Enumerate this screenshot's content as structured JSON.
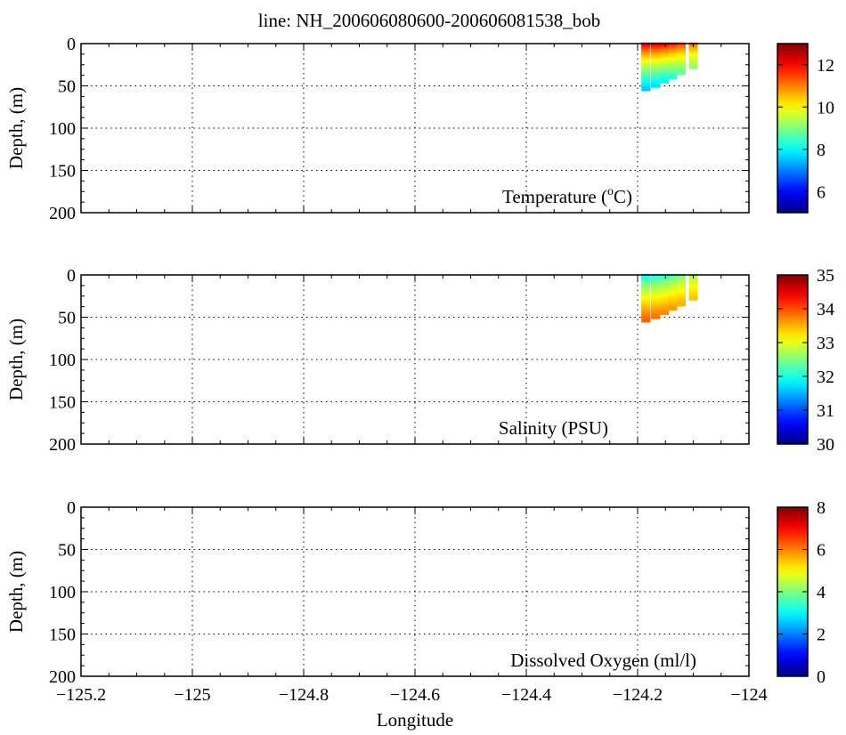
{
  "chart_data": {
    "title": "line: NH_200606080600-200606081538_bob",
    "xlabel": "Longitude",
    "x_ticks": [
      "−125.2",
      "−125",
      "−124.8",
      "−124.6",
      "−124.4",
      "−124.2",
      "−124"
    ],
    "x_tick_values": [
      -125.2,
      -125.0,
      -124.8,
      -124.6,
      -124.4,
      -124.2,
      -124.0
    ],
    "xlim": [
      -125.2,
      -124.0
    ],
    "colormap": "jet",
    "grid": "dotted",
    "panels": [
      {
        "type": "scatter",
        "annotation_prefix": "Temperature (",
        "annotation_sup": "o",
        "annotation_suffix": "C)",
        "ylabel": "Depth, (m)",
        "y_ticks": [
          "0",
          "50",
          "100",
          "150",
          "200"
        ],
        "ylim": [
          0,
          200
        ],
        "y_inverted": true,
        "colorbar": {
          "min": 5,
          "max": 13,
          "ticks": [
            "6",
            "8",
            "10",
            "12"
          ],
          "tick_values": [
            6,
            8,
            10,
            12
          ]
        },
        "casts": [
          {
            "lon": -124.185,
            "max_depth": 54,
            "surface_value": 12.6,
            "bottom_value": 7.6
          },
          {
            "lon": -124.168,
            "max_depth": 50,
            "surface_value": 12.6,
            "bottom_value": 7.8
          },
          {
            "lon": -124.152,
            "max_depth": 45,
            "surface_value": 12.5,
            "bottom_value": 8.0
          },
          {
            "lon": -124.137,
            "max_depth": 40,
            "surface_value": 12.2,
            "bottom_value": 8.4
          },
          {
            "lon": -124.122,
            "max_depth": 35,
            "surface_value": 11.8,
            "bottom_value": 8.8
          },
          {
            "lon": -124.1,
            "max_depth": 28,
            "surface_value": 11.4,
            "bottom_value": 9.2
          }
        ]
      },
      {
        "type": "scatter",
        "annotation": "Salinity (PSU)",
        "ylabel": "Depth, (m)",
        "y_ticks": [
          "0",
          "50",
          "100",
          "150",
          "200"
        ],
        "ylim": [
          0,
          200
        ],
        "y_inverted": true,
        "colorbar": {
          "min": 30,
          "max": 35,
          "ticks": [
            "30",
            "31",
            "32",
            "33",
            "34",
            "35"
          ],
          "tick_values": [
            30,
            31,
            32,
            33,
            34,
            35
          ]
        },
        "casts": [
          {
            "lon": -124.185,
            "max_depth": 54,
            "surface_value": 31.7,
            "bottom_value": 33.9
          },
          {
            "lon": -124.168,
            "max_depth": 50,
            "surface_value": 31.8,
            "bottom_value": 33.8
          },
          {
            "lon": -124.152,
            "max_depth": 45,
            "surface_value": 31.9,
            "bottom_value": 33.7
          },
          {
            "lon": -124.137,
            "max_depth": 40,
            "surface_value": 32.1,
            "bottom_value": 33.6
          },
          {
            "lon": -124.122,
            "max_depth": 35,
            "surface_value": 32.3,
            "bottom_value": 33.5
          },
          {
            "lon": -124.1,
            "max_depth": 28,
            "surface_value": 32.6,
            "bottom_value": 33.4
          }
        ]
      },
      {
        "type": "scatter",
        "annotation": "Dissolved Oxygen (ml/l)",
        "ylabel": "Depth, (m)",
        "y_ticks": [
          "0",
          "50",
          "100",
          "150",
          "200"
        ],
        "ylim": [
          0,
          200
        ],
        "y_inverted": true,
        "colorbar": {
          "min": 0,
          "max": 8,
          "ticks": [
            "0",
            "2",
            "4",
            "6",
            "8"
          ],
          "tick_values": [
            0,
            2,
            4,
            6,
            8
          ]
        },
        "casts": []
      }
    ]
  }
}
